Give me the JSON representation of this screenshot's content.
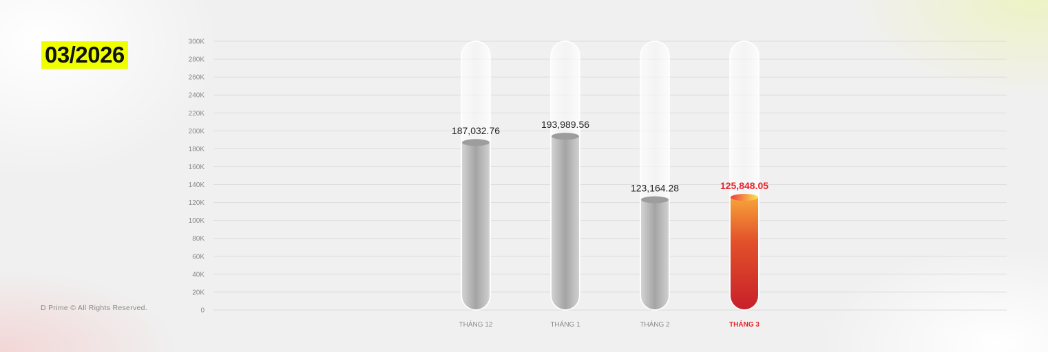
{
  "period_badge": "03/2026",
  "footer": "D Prime © All Rights Reserved.",
  "colors": {
    "highlight": "#e8232a",
    "badge": "#f0ff00",
    "bar_gray": "#b5b5b5"
  },
  "chart_data": {
    "type": "bar",
    "title": "",
    "xlabel": "",
    "ylabel": "",
    "ylim": [
      0,
      300000
    ],
    "yticks": [
      "0",
      "20K",
      "40K",
      "60K",
      "80K",
      "100K",
      "120K",
      "140K",
      "160K",
      "180K",
      "200K",
      "220K",
      "240K",
      "260K",
      "280K",
      "300K"
    ],
    "grid": true,
    "categories": [
      "THÁNG 12",
      "THÁNG 1",
      "THÁNG 2",
      "THÁNG 3"
    ],
    "values": [
      187032.76,
      193989.56,
      123164.28,
      125848.05
    ],
    "data_labels": [
      "187,032.76",
      "193,989.56",
      "123,164.28",
      "125,848.05"
    ],
    "highlighted_index": 3
  }
}
